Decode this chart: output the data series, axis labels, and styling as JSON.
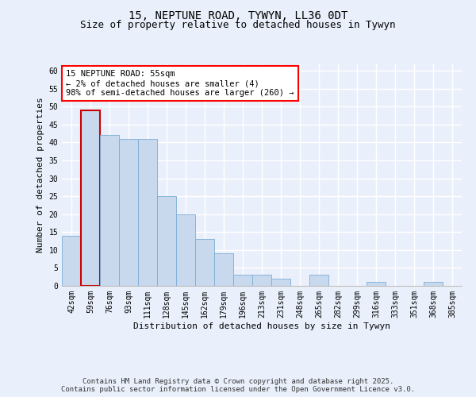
{
  "title1": "15, NEPTUNE ROAD, TYWYN, LL36 0DT",
  "title2": "Size of property relative to detached houses in Tywyn",
  "xlabel": "Distribution of detached houses by size in Tywyn",
  "ylabel": "Number of detached properties",
  "categories": [
    "42sqm",
    "59sqm",
    "76sqm",
    "93sqm",
    "111sqm",
    "128sqm",
    "145sqm",
    "162sqm",
    "179sqm",
    "196sqm",
    "213sqm",
    "231sqm",
    "248sqm",
    "265sqm",
    "282sqm",
    "299sqm",
    "316sqm",
    "333sqm",
    "351sqm",
    "368sqm",
    "385sqm"
  ],
  "values": [
    14,
    49,
    42,
    41,
    41,
    25,
    20,
    13,
    9,
    3,
    3,
    2,
    0,
    3,
    0,
    0,
    1,
    0,
    0,
    1,
    0
  ],
  "bar_color": "#c9d9ed",
  "bar_edge_color": "#7aadd4",
  "highlight_bar_edge_color": "#cc0000",
  "annotation_box_text": "15 NEPTUNE ROAD: 55sqm\n← 2% of detached houses are smaller (4)\n98% of semi-detached houses are larger (260) →",
  "ylim": [
    0,
    62
  ],
  "yticks": [
    0,
    5,
    10,
    15,
    20,
    25,
    30,
    35,
    40,
    45,
    50,
    55,
    60
  ],
  "background_color": "#eaf0fb",
  "grid_color": "#ffffff",
  "footer_text": "Contains HM Land Registry data © Crown copyright and database right 2025.\nContains public sector information licensed under the Open Government Licence v3.0.",
  "title_fontsize": 10,
  "subtitle_fontsize": 9,
  "axis_label_fontsize": 8,
  "tick_fontsize": 7,
  "annotation_fontsize": 7.5,
  "footer_fontsize": 6.5
}
